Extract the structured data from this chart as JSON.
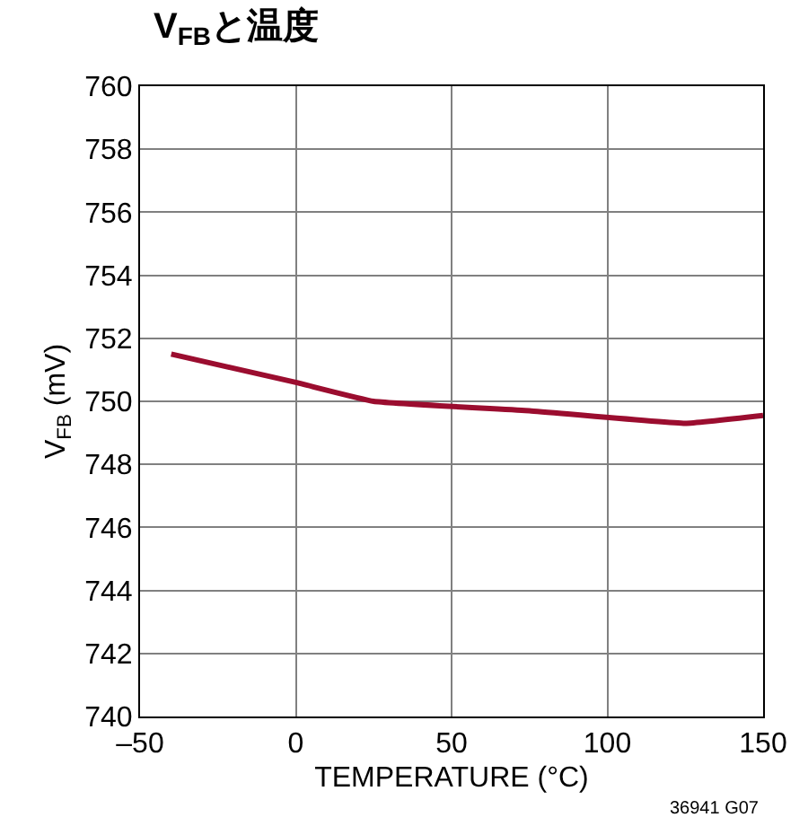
{
  "chart_data": {
    "type": "line",
    "title": "V$_{FB}$と温度",
    "xlabel": "TEMPERATURE (°C)",
    "ylabel": "V$_{FB}$ (mV)",
    "x": [
      -40,
      0,
      25,
      75,
      125,
      150
    ],
    "series": [
      {
        "color": "#9b0d2f",
        "values": [
          751.5,
          750.6,
          750.0,
          749.7,
          749.3,
          749.55
        ]
      }
    ],
    "xlim": [
      -50,
      150
    ],
    "xticks": [
      {
        "value": -50,
        "label": "–50"
      },
      0,
      50,
      100,
      150
    ],
    "ylim": [
      740,
      760
    ],
    "yticks": [
      740,
      742,
      744,
      746,
      748,
      750,
      752,
      754,
      756,
      758,
      760
    ],
    "grid": true,
    "marker": "none",
    "line_style": "solid",
    "annotations": [
      "36941 G07"
    ]
  }
}
